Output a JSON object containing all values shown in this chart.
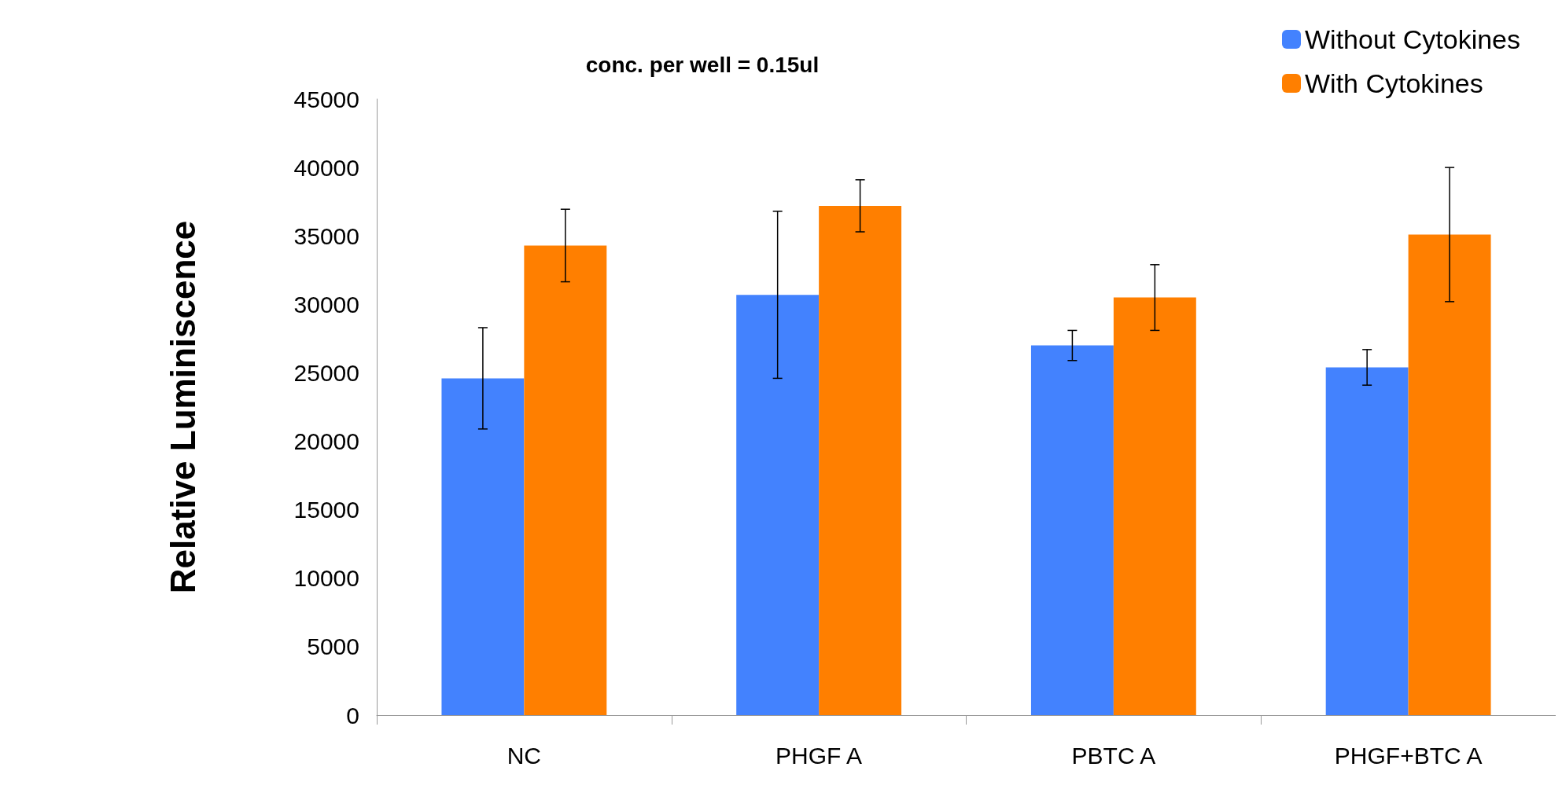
{
  "chart_data": {
    "type": "bar",
    "title": "conc. per well = 0.15ul",
    "ylabel": "Relative Luminiscence",
    "categories": [
      "NC",
      "PHGF A",
      "PBTC A",
      "PHGF+BTC A"
    ],
    "series": [
      {
        "name": "Without Cytokines",
        "color": "#4382fe",
        "values": [
          24600,
          30700,
          27000,
          25400
        ],
        "errors": [
          3700,
          6100,
          1100,
          1300
        ]
      },
      {
        "name": "With Cytokines",
        "color": "#ff7f00",
        "values": [
          34300,
          37200,
          30500,
          35100
        ],
        "errors": [
          2650,
          1900,
          2400,
          4900
        ]
      }
    ],
    "ylim": [
      0,
      45000
    ],
    "yticks": [
      0,
      5000,
      10000,
      15000,
      20000,
      25000,
      30000,
      35000,
      40000,
      45000
    ],
    "grid": false,
    "legend": "top right"
  }
}
